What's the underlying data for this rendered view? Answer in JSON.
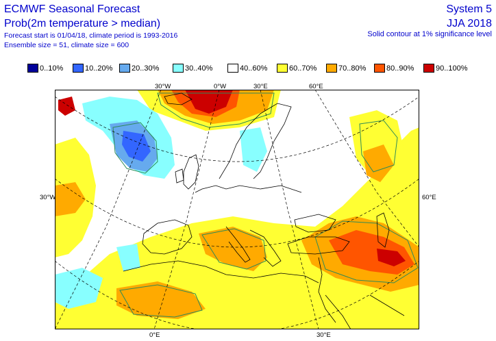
{
  "header": {
    "title": "ECMWF Seasonal Forecast",
    "subtitle": "Prob(2m temperature > median)",
    "info_start": "Forecast start is 01/04/18, climate period is 1993-2016",
    "info_size": "Ensemble size = 51, climate size = 600",
    "system": "System 5",
    "period": "JJA 2018",
    "contour_note": "Solid contour at 1% significance level"
  },
  "legend": [
    {
      "label": "0..10%",
      "color": "#000099"
    },
    {
      "label": "10..20%",
      "color": "#3366ff"
    },
    {
      "label": "20..30%",
      "color": "#66aaee"
    },
    {
      "label": "30..40%",
      "color": "#88ffff"
    },
    {
      "label": "40..60%",
      "color": "#ffffff"
    },
    {
      "label": "60..70%",
      "color": "#ffff33"
    },
    {
      "label": "70..80%",
      "color": "#ffaa00"
    },
    {
      "label": "80..90%",
      "color": "#ff5500"
    },
    {
      "label": "90..100%",
      "color": "#cc0000"
    }
  ],
  "coord_labels": {
    "top_30w": "30°W",
    "top_0e": "0°W",
    "top_30e": "30°E",
    "top_60e": "60°E",
    "left_30w": "30°W",
    "right_60e": "60°E",
    "bottom_0e": "0°E",
    "bottom_30e": "30°E"
  },
  "colors": {
    "text": "#0000cc",
    "coast": "#000000",
    "significance": "#2e8b57",
    "graticule": "#000000"
  },
  "map": {
    "region": "Europe, North Atlantic, North Africa, Middle East",
    "features": [
      {
        "name": "north-atlantic-warm-anomaly",
        "category": "90..100%"
      },
      {
        "name": "north-atlantic-cold-anomaly",
        "category": "10..20%"
      },
      {
        "name": "middle-east-warm-anomaly",
        "category": "80..90%"
      },
      {
        "name": "mediterranean-warm-anomaly",
        "category": "70..80%"
      }
    ]
  }
}
